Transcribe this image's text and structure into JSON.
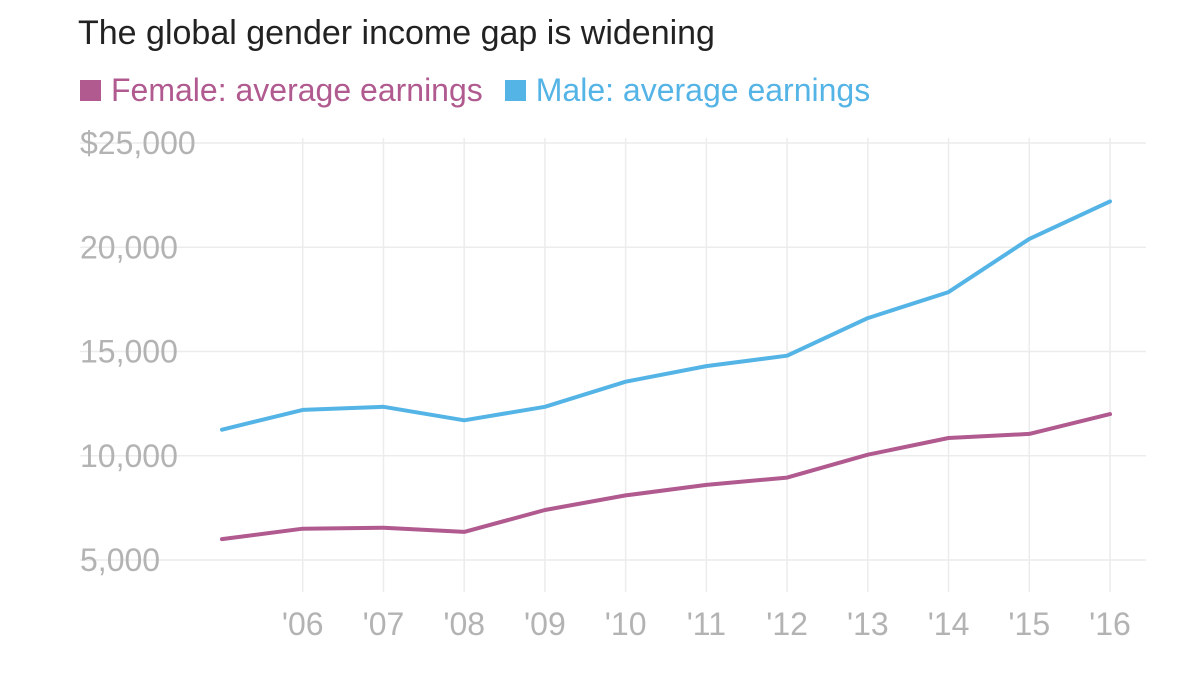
{
  "chart_data": {
    "type": "line",
    "title": "The global gender income gap is widening",
    "x": [
      2005,
      2006,
      2007,
      2008,
      2009,
      2010,
      2011,
      2012,
      2013,
      2014,
      2015,
      2016
    ],
    "x_tick_values": [
      2006,
      2007,
      2008,
      2009,
      2010,
      2011,
      2012,
      2013,
      2014,
      2015,
      2016
    ],
    "x_tick_labels": [
      "'06",
      "'07",
      "'08",
      "'09",
      "'10",
      "'11",
      "'12",
      "'13",
      "'14",
      "'15",
      "'16"
    ],
    "y_tick_values": [
      5000,
      10000,
      15000,
      20000,
      25000
    ],
    "y_tick_labels": [
      "5,000",
      "10,000",
      "15,000",
      "20,000",
      "$25,000"
    ],
    "ylim": [
      5000,
      25000
    ],
    "grid": true,
    "legend_position": "top-left",
    "series": [
      {
        "name": "Female: average earnings",
        "color": "#b05a8f",
        "values": [
          6000,
          6500,
          6550,
          6350,
          7400,
          8100,
          8600,
          8950,
          10050,
          10850,
          11050,
          12000
        ]
      },
      {
        "name": "Male: average earnings",
        "color": "#55b4e6",
        "values": [
          11250,
          12200,
          12350,
          11700,
          12350,
          13550,
          14300,
          14800,
          16600,
          17850,
          20400,
          22200
        ]
      }
    ]
  }
}
